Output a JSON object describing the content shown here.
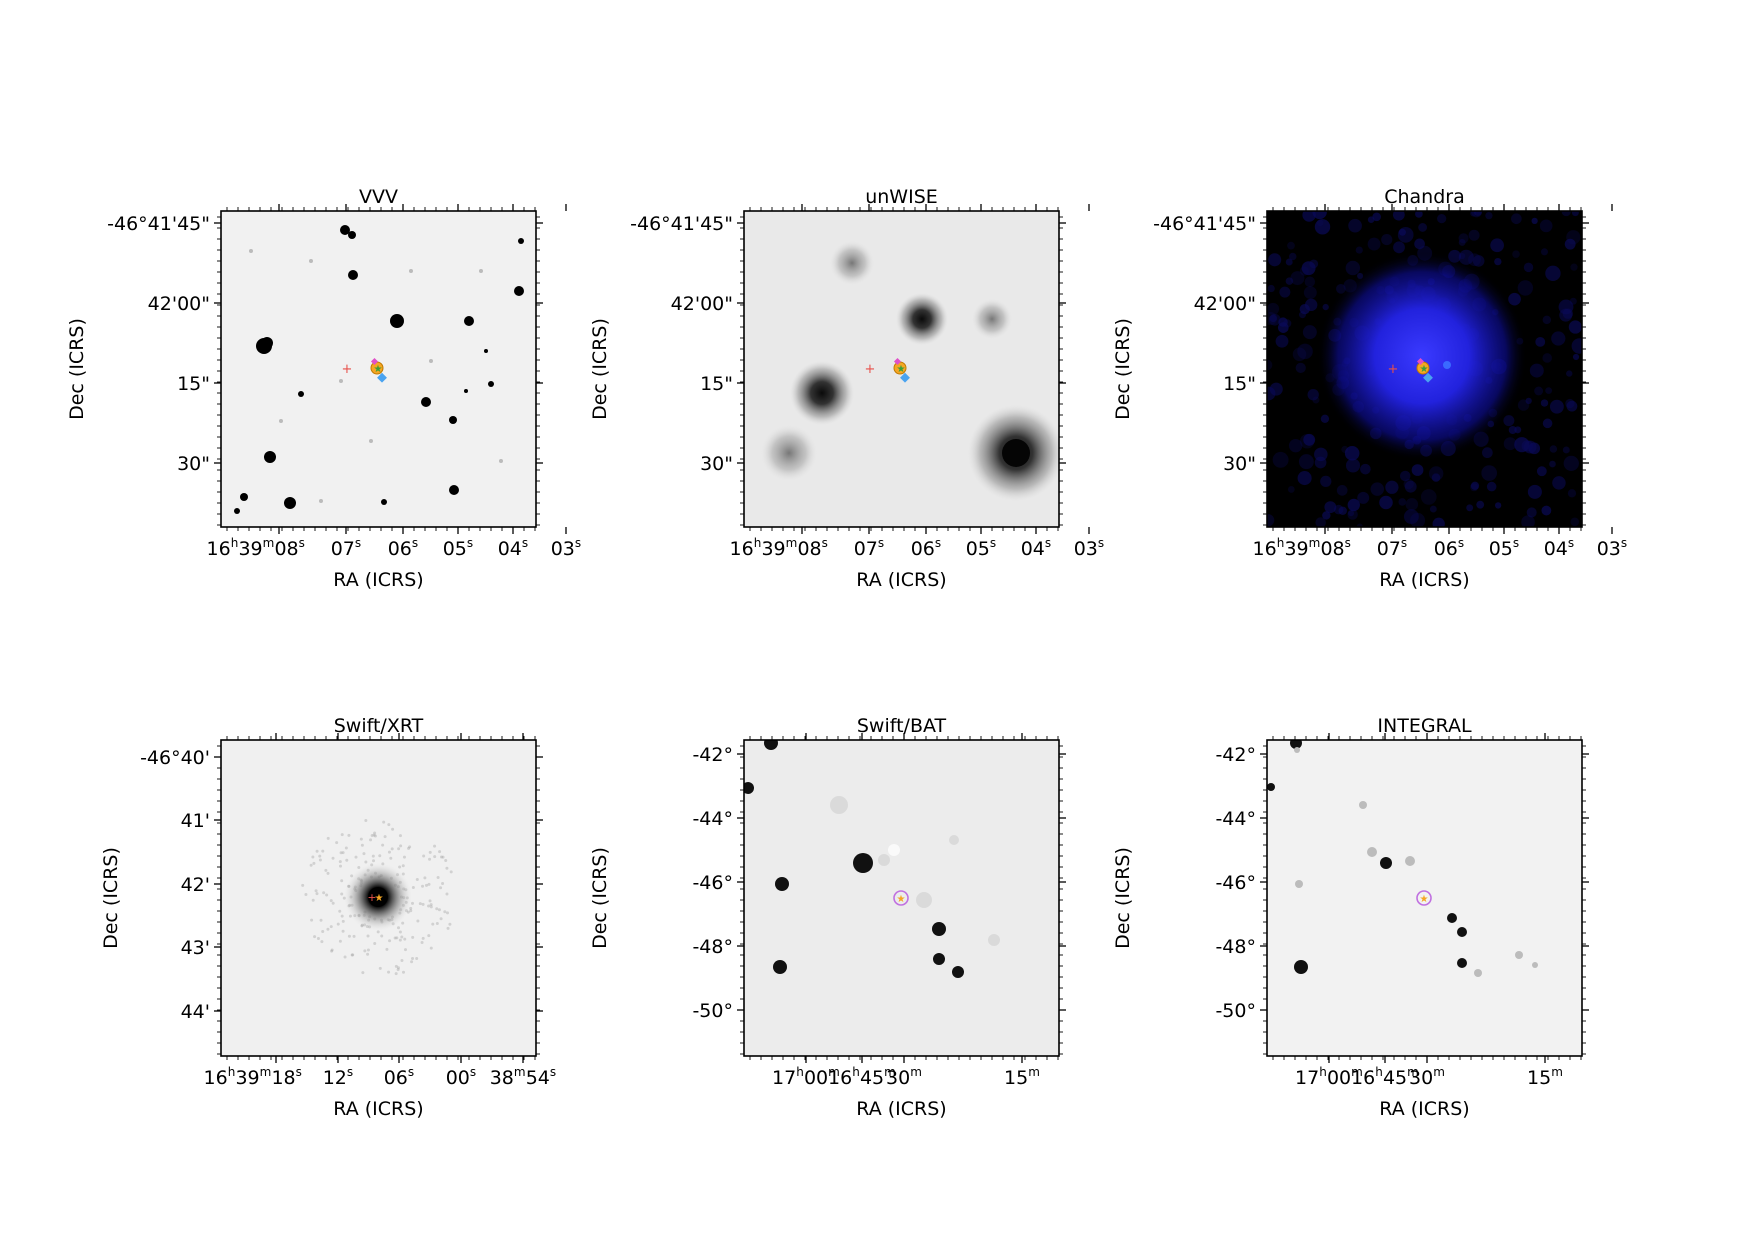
{
  "figure": {
    "panels": [
      {
        "title": "VVV",
        "xlabel": "RA (ICRS)",
        "ylabel": "Dec (ICRS)",
        "y_ticks": [
          "-46°41'45\"",
          "42'00\"",
          "15\"",
          "30\""
        ],
        "x_ticks": [
          {
            "h": "16",
            "m": "39",
            "s": "08",
            "full": true
          },
          {
            "s": "07"
          },
          {
            "s": "06"
          },
          {
            "s": "05"
          },
          {
            "s": "04"
          },
          {
            "s": "03"
          }
        ],
        "background": "#f1f1f1",
        "markers": "small"
      },
      {
        "title": "unWISE",
        "xlabel": "RA (ICRS)",
        "ylabel": "Dec (ICRS)",
        "y_ticks": [
          "-46°41'45\"",
          "42'00\"",
          "15\"",
          "30\""
        ],
        "x_ticks": [
          {
            "h": "16",
            "m": "39",
            "s": "08",
            "full": true
          },
          {
            "s": "07"
          },
          {
            "s": "06"
          },
          {
            "s": "05"
          },
          {
            "s": "04"
          },
          {
            "s": "03"
          }
        ],
        "background": "#e9e9e9",
        "markers": "small"
      },
      {
        "title": "Chandra",
        "xlabel": "RA (ICRS)",
        "ylabel": "Dec (ICRS)",
        "y_ticks": [
          "-46°41'45\"",
          "42'00\"",
          "15\"",
          "30\""
        ],
        "x_ticks": [
          {
            "h": "16",
            "m": "39",
            "s": "08",
            "full": true
          },
          {
            "s": "07"
          },
          {
            "s": "06"
          },
          {
            "s": "05"
          },
          {
            "s": "04"
          },
          {
            "s": "03"
          }
        ],
        "background": "#000000",
        "markers": "small"
      },
      {
        "title": "Swift/XRT",
        "xlabel": "RA (ICRS)",
        "ylabel": "Dec (ICRS)",
        "y_ticks": [
          "-46°40'",
          "41'",
          "42'",
          "43'",
          "44'"
        ],
        "x_ticks": [
          {
            "h": "16",
            "m": "39",
            "s": "18",
            "full": true
          },
          {
            "s": "12"
          },
          {
            "s": "06"
          },
          {
            "s": "00"
          },
          {
            "m": "38",
            "s": "54"
          }
        ],
        "background": "#f0f0f0",
        "markers": "tiny"
      },
      {
        "title": "Swift/BAT",
        "xlabel": "RA (ICRS)",
        "ylabel": "Dec (ICRS)",
        "y_ticks": [
          "-42°",
          "-44°",
          "-46°",
          "-48°",
          "-50°"
        ],
        "x_ticks": [
          {
            "h": "17",
            "m": "00"
          },
          {
            "h": "16",
            "m": "45"
          },
          {
            "m": "30"
          },
          {
            "m": "15"
          }
        ],
        "background": "#ececec",
        "markers": "circle"
      },
      {
        "title": "INTEGRAL",
        "xlabel": "RA (ICRS)",
        "ylabel": "Dec (ICRS)",
        "y_ticks": [
          "-42°",
          "-44°",
          "-46°",
          "-48°",
          "-50°"
        ],
        "x_ticks": [
          {
            "h": "17",
            "m": "00"
          },
          {
            "h": "16",
            "m": "45"
          },
          {
            "m": "30"
          },
          {
            "m": "15"
          }
        ],
        "background": "#f2f2f2",
        "markers": "circle"
      }
    ],
    "colors": {
      "marker_red": "#e8504a",
      "marker_orange": "#f5a623",
      "marker_blue": "#4aa3f0",
      "marker_magenta": "#e050c8",
      "marker_green": "#3a9e3a",
      "circle_purple": "#c070e0",
      "chandra_glow": "#2a2aff"
    }
  }
}
